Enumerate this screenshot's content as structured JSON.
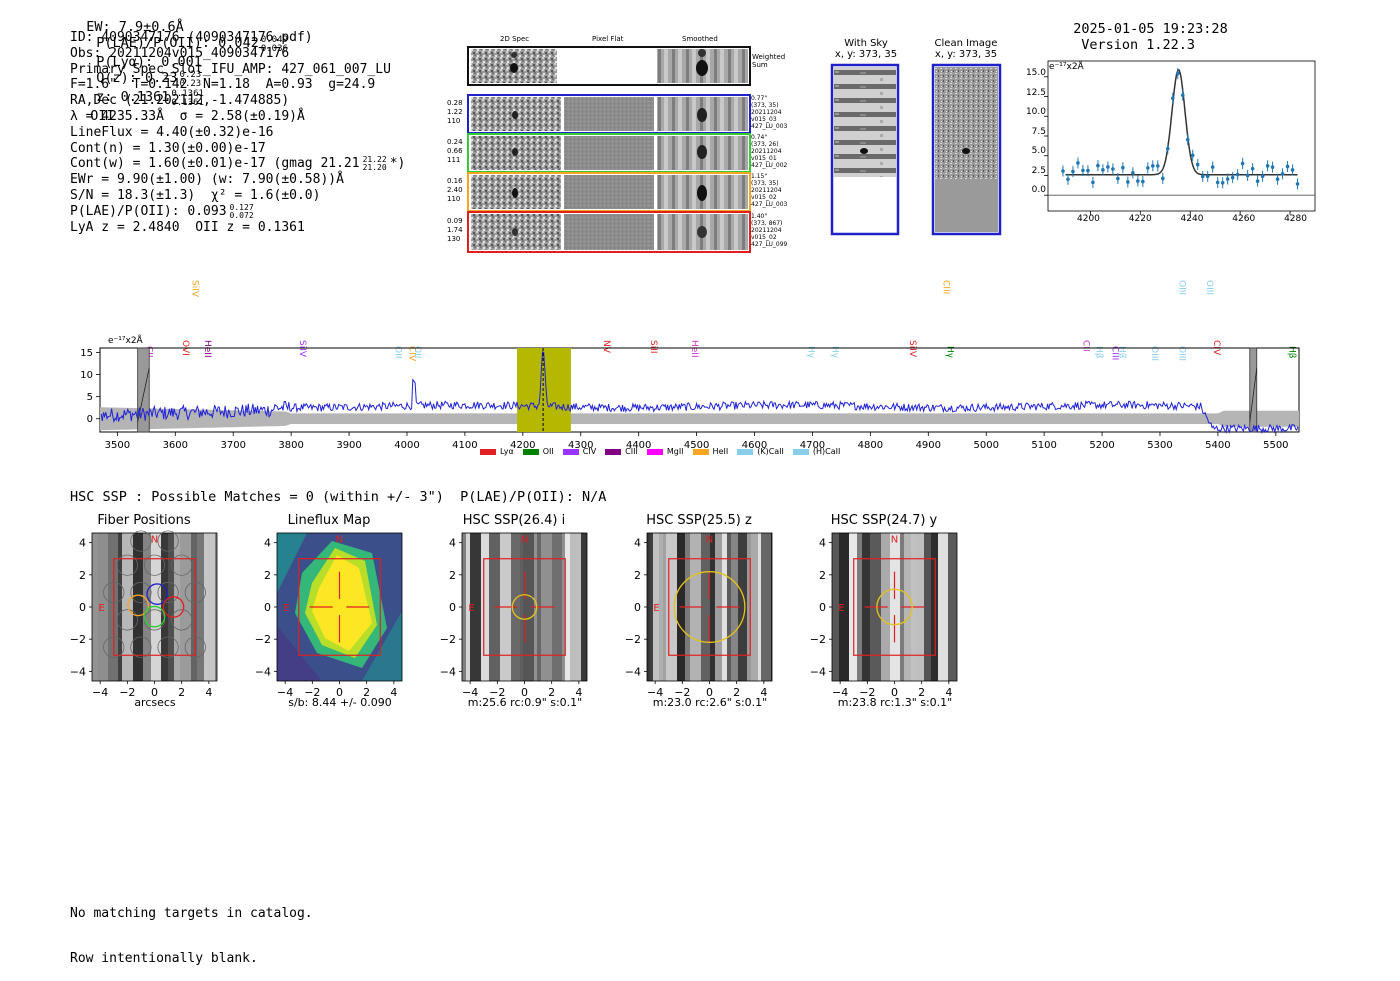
{
  "header": {
    "ew_label": "EW: 7.9±0.6Å",
    "plae_label": "P(LAE)/P(OII): 0.042",
    "plae_up": "0.049",
    "plae_lo": "0.036",
    "plya_label": "P(Lyα): 0.001",
    "qz_label": "Q(z): 0.23",
    "qz_up": "0.23",
    "qz_lo": "0.23",
    "z_label": "z: 0.1361",
    "z_up": "0.1361",
    "z_lo": "0.1361",
    "z_line": "OII",
    "timestamp": "2025-01-05 19:23:28",
    "version": "Version 1.22.3"
  },
  "info": {
    "id": "ID: 4090347176 (4090347176.pdf)",
    "obs": "Obs: 20211204v015_4090347176",
    "primary": "Primary Spec_Slot_IFU_AMP: 427_061_007_LU",
    "params": "F=1.6\"  T=0.142  N=1.18  A=0.93  g=24.9",
    "radec": "RA,Dec (21.202112,-1.474885)",
    "lambda": "λ = 4235.33Å  σ = 2.58(±0.19)Å",
    "lineflux": "LineFlux = 4.40(±0.32)e-16",
    "contn": "Cont(n) = 1.30(±0.00)e-17",
    "contw": "Cont(w) = 1.60(±0.01)e-17 (gmag 21.21",
    "gmag_up": "21.22",
    "gmag_lo": "21.20",
    "gmag_tail": "*)",
    "ewr": "EWr = 9.90(±1.00) (w: 7.90(±0.58))Å",
    "sn": "S/N = 18.3(±1.3)  χ² = 1.6(±0.0)",
    "plae2": "P(LAE)/P(OII): 0.093",
    "plae2_up": "0.127",
    "plae2_lo": "0.072",
    "lyaz": "LyA z = 2.4840  OII z = 0.1361"
  },
  "cutouts": {
    "col_2d": "2D Spec",
    "col_flat": "Pixel Flat",
    "col_smooth": "Smoothed",
    "weighted": "Weighted Sum",
    "rows": [
      {
        "left": [
          "0.28",
          "1.22",
          "110"
        ],
        "right": [
          "0.77\"",
          "(373, 35)",
          "20211204",
          "v015_03",
          "427_LU_003"
        ],
        "color": "#1f22c8"
      },
      {
        "left": [
          "0.24",
          "0.66",
          "111"
        ],
        "right": [
          "0.74\"",
          "(373, 26)",
          "20211204",
          "v015_01",
          "427_LU_002"
        ],
        "color": "#33cc33"
      },
      {
        "left": [
          "0.16",
          "2.40",
          "110"
        ],
        "right": [
          "1.15\"",
          "(373, 35)",
          "20211204",
          "v015_02",
          "427_LU_003"
        ],
        "color": "#f5a623"
      },
      {
        "left": [
          "0.09",
          "1.74",
          "130"
        ],
        "right": [
          "1.40\"",
          "(373, 867)",
          "20211204",
          "v015_02",
          "427_LU_099"
        ],
        "color": "#e02020"
      }
    ]
  },
  "sky": {
    "with_sky_title": "With Sky",
    "with_sky_coords": "x, y: 373, 35",
    "clean_title": "Clean Image",
    "clean_coords": "x, y: 373, 35"
  },
  "zoom_chart": {
    "unit_label": "e⁻¹⁷x2Å",
    "y_ticks": [
      "15.0",
      "12.5",
      "10.0",
      "7.5",
      "5.0",
      "2.5",
      "0.0"
    ],
    "x_ticks": [
      "4200",
      "4220",
      "4240",
      "4260",
      "4280"
    ]
  },
  "chart_data": {
    "type": "line",
    "title": "",
    "ylabel": "e⁻¹⁷x2Å",
    "xlim": [
      3470,
      5540
    ],
    "ylim": [
      -3,
      16
    ],
    "x_ticks": [
      3500,
      3600,
      3700,
      3800,
      3900,
      4000,
      4100,
      4200,
      4300,
      4400,
      4500,
      4600,
      4700,
      4800,
      4900,
      5000,
      5100,
      5200,
      5300,
      5400,
      5500
    ],
    "y_ticks": [
      0,
      5,
      10,
      15
    ],
    "highlight_range": [
      4190,
      4283
    ],
    "line_center": 4235,
    "masked_ranges": [
      [
        3535,
        3555
      ],
      [
        5455,
        5465
      ]
    ],
    "line_labels": [
      {
        "x": 3550,
        "label": "CII",
        "color": "#cc33cc",
        "row": 3
      },
      {
        "x": 3630,
        "label": "SiIV",
        "color": "#f5a623",
        "row": 0
      },
      {
        "x": 3613,
        "label": "OVI",
        "color": "#e02020",
        "row": 2
      },
      {
        "x": 3651,
        "label": "HeII",
        "color": "#800080",
        "row": 2
      },
      {
        "x": 3815,
        "label": "SiIV",
        "color": "#9933ff",
        "row": 2
      },
      {
        "x": 3980,
        "label": "OII",
        "color": "#87ceeb",
        "row": 3
      },
      {
        "x": 4004,
        "label": "CIV",
        "color": "#f5a623",
        "row": 3
      },
      {
        "x": 4014,
        "label": "OII",
        "color": "#87ceeb",
        "row": 3
      },
      {
        "x": 4340,
        "label": "NV",
        "color": "#e02020",
        "row": 2
      },
      {
        "x": 4421,
        "label": "SiII",
        "color": "#e02020",
        "row": 2
      },
      {
        "x": 4492,
        "label": "HeII",
        "color": "#cc33cc",
        "row": 2
      },
      {
        "x": 4693,
        "label": "Hγ",
        "color": "#87ceeb",
        "row": 3
      },
      {
        "x": 4735,
        "label": "Hγ",
        "color": "#87ceeb",
        "row": 3
      },
      {
        "x": 4868,
        "label": "SiIV",
        "color": "#e02020",
        "row": 2
      },
      {
        "x": 4926,
        "label": "CIII",
        "color": "#f5a623",
        "row": 0
      },
      {
        "x": 4933,
        "label": "Hγ",
        "color": "#008000",
        "row": 3
      },
      {
        "x": 5168,
        "label": "CII",
        "color": "#cc33cc",
        "row": 2
      },
      {
        "x": 5190,
        "label": "Hβ",
        "color": "#87ceeb",
        "row": 3
      },
      {
        "x": 5218,
        "label": "CIII",
        "color": "#9933ff",
        "row": 3
      },
      {
        "x": 5230,
        "label": "Hβ",
        "color": "#87ceeb",
        "row": 3
      },
      {
        "x": 5286,
        "label": "OIII",
        "color": "#87ceeb",
        "row": 3
      },
      {
        "x": 5334,
        "label": "OIII",
        "color": "#87ceeb",
        "row": 0
      },
      {
        "x": 5334,
        "label": "OIII",
        "color": "#87ceeb",
        "row": 3
      },
      {
        "x": 5381,
        "label": "OIII",
        "color": "#87ceeb",
        "row": 0
      },
      {
        "x": 5393,
        "label": "CIV",
        "color": "#e02020",
        "row": 2
      },
      {
        "x": 5524,
        "label": "Hβ",
        "color": "#008000",
        "row": 3
      }
    ],
    "legend": [
      {
        "name": "Lyα",
        "color": "#e02020"
      },
      {
        "name": "OII",
        "color": "#008000"
      },
      {
        "name": "CIV",
        "color": "#9933ff"
      },
      {
        "name": "CIII",
        "color": "#800080"
      },
      {
        "name": "MgII",
        "color": "#ff00ff"
      },
      {
        "name": "HeII",
        "color": "#f5a623"
      },
      {
        "name": "(K)CaII",
        "color": "#87ceeb"
      },
      {
        "name": "(H)CaII",
        "color": "#87ceeb"
      }
    ]
  },
  "hsc": {
    "summary": "HSC SSP : Possible Matches = 0 (within +/- 3\")  P(LAE)/P(OII): N/A",
    "panels": [
      {
        "title": "Fiber Positions",
        "caption": "arcsecs"
      },
      {
        "title": "Lineflux Map",
        "caption": "s/b: 8.44 +/- 0.090"
      },
      {
        "title": "HSC SSP(26.4) i",
        "caption": "m:25.6 rc:0.9\"  s:0.1\""
      },
      {
        "title": "HSC SSP(25.5) z",
        "caption": "m:23.0 rc:2.6\"  s:0.1\""
      },
      {
        "title": "HSC SSP(24.7) y",
        "caption": "m:23.8 rc:1.3\"  s:0.1\""
      }
    ],
    "axis_ticks": [
      "4",
      "2",
      "0",
      "−2",
      "−4"
    ],
    "x_axis_ticks": [
      "−4",
      "−2",
      "0",
      "2",
      "4"
    ],
    "north": "N",
    "east": "E"
  },
  "footer": {
    "line1": "No matching targets in catalog.",
    "line2": "Row intentionally blank."
  }
}
